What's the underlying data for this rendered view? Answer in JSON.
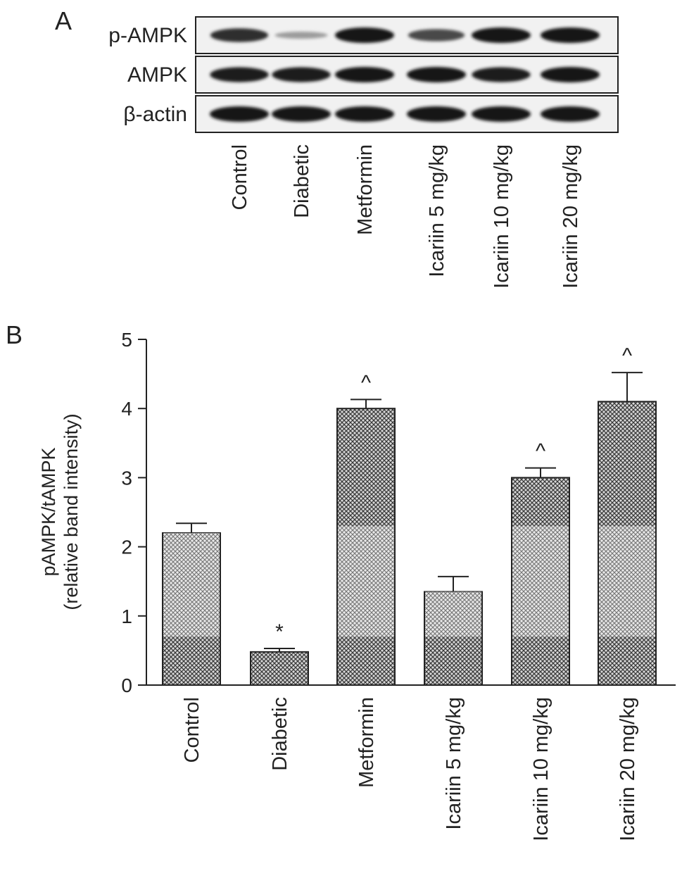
{
  "panel_a": {
    "letter": "A",
    "blot_rows": [
      {
        "label": "p-AMPK",
        "band_strength": [
          0.85,
          0.25,
          1.0,
          0.7,
          1.0,
          1.0
        ]
      },
      {
        "label": "AMPK",
        "band_strength": [
          0.95,
          0.95,
          1.0,
          1.0,
          0.95,
          1.0
        ]
      },
      {
        "label": "β-actin",
        "band_strength": [
          1.0,
          1.0,
          1.0,
          1.0,
          1.0,
          1.0
        ]
      }
    ],
    "lane_labels": [
      "Control",
      "Diabetic",
      "Metformin",
      "Icariin 5 mg/kg",
      "Icariin 10 mg/kg",
      "Icariin 20 mg/kg"
    ]
  },
  "panel_b": {
    "letter": "B"
  },
  "chart_data": {
    "type": "bar",
    "title": "",
    "xlabel": "",
    "ylabel_lines": [
      "pAMPK/tAMPK",
      "(relative band intensity)"
    ],
    "ylim": [
      0,
      5
    ],
    "yticks": [
      "0",
      "1",
      "2",
      "3",
      "4",
      "5"
    ],
    "categories": [
      "Control",
      "Diabetic",
      "Metformin",
      "Icariin 5 mg/kg",
      "Icariin 10 mg/kg",
      "Icariin 20 mg/kg"
    ],
    "values": [
      2.2,
      0.48,
      4.0,
      1.35,
      3.0,
      4.1
    ],
    "errors": [
      0.14,
      0.05,
      0.13,
      0.22,
      0.14,
      0.42
    ],
    "markers": [
      "",
      "*",
      "^",
      "",
      "^",
      "^"
    ],
    "grid": false,
    "bar_pattern": "crosshatch"
  }
}
